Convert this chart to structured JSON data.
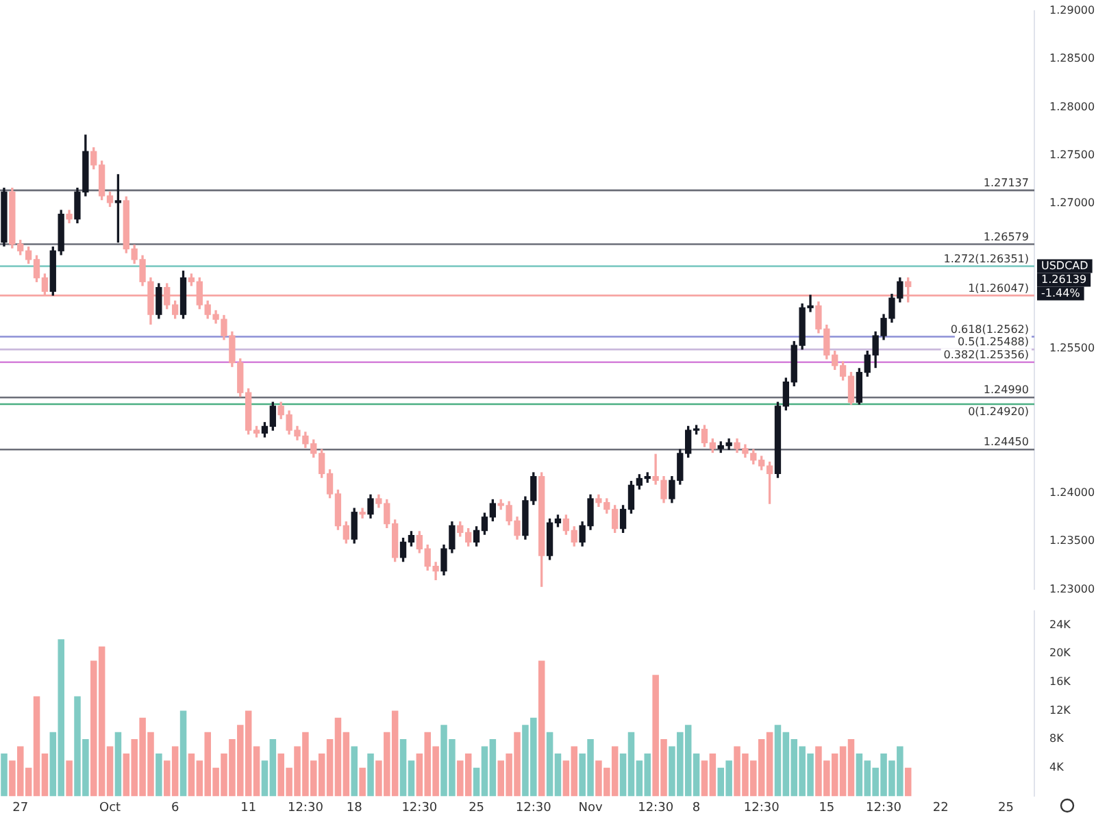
{
  "chart_data": [
    {
      "type": "candlestick",
      "tick_labels": "y",
      "categories": [
        null,
        null,
        null,
        null,
        null,
        null,
        null,
        null,
        null,
        null,
        null,
        null,
        null,
        null,
        null,
        null,
        null,
        null,
        null,
        null,
        null,
        null,
        null,
        null,
        null,
        null,
        null,
        null,
        null,
        null,
        null,
        null,
        null,
        null,
        null,
        null,
        null,
        null,
        null,
        null,
        null,
        null,
        null,
        null,
        null,
        null,
        null,
        null,
        null,
        null,
        null,
        null,
        null,
        null,
        null,
        null,
        null,
        null,
        null,
        null,
        null,
        null,
        null,
        null,
        null,
        null,
        null,
        null,
        null,
        null,
        null,
        null,
        null,
        null,
        null,
        null,
        null,
        null,
        null,
        null,
        null,
        null,
        null,
        null,
        null,
        null,
        null,
        null,
        null,
        null,
        null,
        null,
        null,
        null,
        null,
        null,
        null,
        null,
        null,
        null,
        null,
        null,
        null,
        null,
        null,
        null,
        null,
        null,
        null,
        null,
        null,
        null,
        null,
        null,
        null,
        null,
        null,
        null,
        null,
        null,
        null,
        null,
        null,
        null,
        null,
        null,
        null
      ],
      "ohlc": [
        [
          1.266,
          1.2716,
          1.2656,
          1.2712
        ],
        [
          1.2712,
          1.2716,
          1.2654,
          1.2658
        ],
        [
          1.2658,
          1.2662,
          1.2647,
          1.2651
        ],
        [
          1.2651,
          1.2655,
          1.2638,
          1.2642
        ],
        [
          1.2642,
          1.2646,
          1.2619,
          1.2623
        ],
        [
          1.2623,
          1.2627,
          1.2605,
          1.2609
        ],
        [
          1.2609,
          1.2655,
          1.2605,
          1.2651
        ],
        [
          1.2651,
          1.2693,
          1.2647,
          1.2689
        ],
        [
          1.2689,
          1.2693,
          1.268,
          1.2684
        ],
        [
          1.2684,
          1.2716,
          1.268,
          1.2712
        ],
        [
          1.2712,
          1.2771,
          1.2708,
          1.2754
        ],
        [
          1.2754,
          1.2758,
          1.2736,
          1.274
        ],
        [
          1.274,
          1.2744,
          1.2704,
          1.2708
        ],
        [
          1.2708,
          1.2712,
          1.2697,
          1.2701
        ],
        [
          1.2701,
          1.273,
          1.266,
          1.2703
        ],
        [
          1.2703,
          1.2707,
          1.2649,
          1.2653
        ],
        [
          1.2653,
          1.2657,
          1.2638,
          1.2642
        ],
        [
          1.2642,
          1.2646,
          1.2615,
          1.2619
        ],
        [
          1.2619,
          1.2623,
          1.2575,
          1.2585
        ],
        [
          1.2585,
          1.2617,
          1.2581,
          1.2613
        ],
        [
          1.2613,
          1.2617,
          1.2591,
          1.2595
        ],
        [
          1.2595,
          1.2599,
          1.2581,
          1.2585
        ],
        [
          1.2585,
          1.263,
          1.2581,
          1.2623
        ],
        [
          1.2623,
          1.2627,
          1.2615,
          1.2619
        ],
        [
          1.2619,
          1.2623,
          1.2591,
          1.2595
        ],
        [
          1.2595,
          1.2599,
          1.2581,
          1.2585
        ],
        [
          1.2585,
          1.2589,
          1.2576,
          1.258
        ],
        [
          1.258,
          1.2584,
          1.2559,
          1.2563
        ],
        [
          1.2563,
          1.2567,
          1.2531,
          1.2535
        ],
        [
          1.2535,
          1.2539,
          1.25,
          1.2504
        ],
        [
          1.2504,
          1.2508,
          1.2461,
          1.2465
        ],
        [
          1.2465,
          1.2469,
          1.2458,
          1.2462
        ],
        [
          1.2462,
          1.2473,
          1.2458,
          1.2469
        ],
        [
          1.2469,
          1.2494,
          1.2465,
          1.249
        ],
        [
          1.249,
          1.2494,
          1.2477,
          1.2481
        ],
        [
          1.2481,
          1.2485,
          1.2461,
          1.2465
        ],
        [
          1.2465,
          1.2469,
          1.2455,
          1.2459
        ],
        [
          1.2459,
          1.2463,
          1.2447,
          1.2451
        ],
        [
          1.2451,
          1.2455,
          1.2437,
          1.2441
        ],
        [
          1.2441,
          1.2445,
          1.2416,
          1.242
        ],
        [
          1.242,
          1.2424,
          1.2395,
          1.2399
        ],
        [
          1.2399,
          1.2403,
          1.2362,
          1.2366
        ],
        [
          1.2366,
          1.237,
          1.2348,
          1.2352
        ],
        [
          1.2352,
          1.2384,
          1.2348,
          1.238
        ],
        [
          1.238,
          1.2384,
          1.2374,
          1.2378
        ],
        [
          1.2378,
          1.2398,
          1.2374,
          1.2394
        ],
        [
          1.2394,
          1.2398,
          1.2385,
          1.2389
        ],
        [
          1.2389,
          1.2393,
          1.2364,
          1.2368
        ],
        [
          1.2368,
          1.2372,
          1.2329,
          1.2333
        ],
        [
          1.2333,
          1.2353,
          1.2329,
          1.2349
        ],
        [
          1.2349,
          1.236,
          1.2345,
          1.2356
        ],
        [
          1.2356,
          1.236,
          1.2338,
          1.2342
        ],
        [
          1.2342,
          1.2346,
          1.232,
          1.2324
        ],
        [
          1.2324,
          1.2328,
          1.231,
          1.2319
        ],
        [
          1.2319,
          1.2346,
          1.2315,
          1.2342
        ],
        [
          1.2342,
          1.237,
          1.2338,
          1.2366
        ],
        [
          1.2366,
          1.237,
          1.2355,
          1.2359
        ],
        [
          1.2359,
          1.2363,
          1.2345,
          1.2349
        ],
        [
          1.2349,
          1.2365,
          1.2345,
          1.2361
        ],
        [
          1.2361,
          1.2379,
          1.2357,
          1.2375
        ],
        [
          1.2375,
          1.2393,
          1.2371,
          1.2389
        ],
        [
          1.2389,
          1.2393,
          1.2383,
          1.2387
        ],
        [
          1.2387,
          1.2391,
          1.2367,
          1.2371
        ],
        [
          1.2371,
          1.2375,
          1.2352,
          1.2356
        ],
        [
          1.2356,
          1.2396,
          1.2352,
          1.2392
        ],
        [
          1.2392,
          1.2421,
          1.2388,
          1.2417
        ],
        [
          1.2417,
          1.2421,
          1.2303,
          1.2335
        ],
        [
          1.2335,
          1.2373,
          1.2331,
          1.2369
        ],
        [
          1.2369,
          1.2377,
          1.2365,
          1.2373
        ],
        [
          1.2373,
          1.2377,
          1.2357,
          1.2361
        ],
        [
          1.2361,
          1.2365,
          1.2345,
          1.2349
        ],
        [
          1.2349,
          1.237,
          1.2345,
          1.2366
        ],
        [
          1.2366,
          1.2398,
          1.2362,
          1.2394
        ],
        [
          1.2394,
          1.2398,
          1.2386,
          1.239
        ],
        [
          1.239,
          1.2394,
          1.2379,
          1.2383
        ],
        [
          1.2383,
          1.2387,
          1.2359,
          1.2363
        ],
        [
          1.2363,
          1.2387,
          1.2359,
          1.2383
        ],
        [
          1.2383,
          1.2412,
          1.2379,
          1.2408
        ],
        [
          1.2408,
          1.2419,
          1.2404,
          1.2415
        ],
        [
          1.2415,
          1.2421,
          1.2411,
          1.2417
        ],
        [
          1.2417,
          1.244,
          1.2409,
          1.2413
        ],
        [
          1.2413,
          1.2417,
          1.239,
          1.2394
        ],
        [
          1.2394,
          1.2417,
          1.239,
          1.2413
        ],
        [
          1.2413,
          1.2445,
          1.2409,
          1.2441
        ],
        [
          1.2441,
          1.2469,
          1.2437,
          1.2465
        ],
        [
          1.2465,
          1.247,
          1.2461,
          1.2466
        ],
        [
          1.2466,
          1.247,
          1.2448,
          1.2452
        ],
        [
          1.2452,
          1.2456,
          1.2442,
          1.2446
        ],
        [
          1.2446,
          1.2453,
          1.2442,
          1.2449
        ],
        [
          1.2449,
          1.2456,
          1.2445,
          1.2452
        ],
        [
          1.2452,
          1.2456,
          1.2442,
          1.2446
        ],
        [
          1.2446,
          1.245,
          1.2437,
          1.2441
        ],
        [
          1.2441,
          1.2445,
          1.243,
          1.2434
        ],
        [
          1.2434,
          1.2438,
          1.2424,
          1.2428
        ],
        [
          1.2428,
          1.2432,
          1.2389,
          1.242
        ],
        [
          1.242,
          1.2494,
          1.2416,
          1.249
        ],
        [
          1.249,
          1.2519,
          1.2486,
          1.2515
        ],
        [
          1.2515,
          1.2557,
          1.2511,
          1.2553
        ],
        [
          1.2553,
          1.2596,
          1.2549,
          1.2592
        ],
        [
          1.2592,
          1.2605,
          1.2588,
          1.2594
        ],
        [
          1.2594,
          1.2598,
          1.2566,
          1.257
        ],
        [
          1.257,
          1.2574,
          1.2539,
          1.2543
        ],
        [
          1.2543,
          1.2547,
          1.2528,
          1.2532
        ],
        [
          1.2532,
          1.2536,
          1.2517,
          1.2521
        ],
        [
          1.2521,
          1.2525,
          1.2492,
          1.2494
        ],
        [
          1.2494,
          1.2529,
          1.2492,
          1.2525
        ],
        [
          1.2525,
          1.2547,
          1.2521,
          1.2543
        ],
        [
          1.2543,
          1.2567,
          1.253,
          1.2563
        ],
        [
          1.2563,
          1.2585,
          1.2559,
          1.2581
        ],
        [
          1.2581,
          1.2606,
          1.2577,
          1.2602
        ],
        [
          1.2602,
          1.2623,
          1.2598,
          1.2619
        ],
        [
          1.2619,
          1.2623,
          1.2598,
          1.26139
        ],
        null,
        null,
        null,
        null,
        null,
        null,
        null,
        null,
        null,
        null,
        null,
        null,
        null,
        null,
        null
      ],
      "colors": [
        "#131722",
        "#f7a5a3",
        "#f7a5a3",
        "#f7a5a3",
        "#f7a5a3",
        "#f7a5a3",
        "#131722",
        "#131722",
        "#f7a5a3",
        "#131722",
        "#131722",
        "#f7a5a3",
        "#f7a5a3",
        "#f7a5a3",
        "#131722",
        "#f7a5a3",
        "#f7a5a3",
        "#f7a5a3",
        "#f7a5a3",
        "#131722",
        "#f7a5a3",
        "#f7a5a3",
        "#131722",
        "#f7a5a3",
        "#f7a5a3",
        "#f7a5a3",
        "#f7a5a3",
        "#f7a5a3",
        "#f7a5a3",
        "#f7a5a3",
        "#f7a5a3",
        "#f7a5a3",
        "#131722",
        "#131722",
        "#f7a5a3",
        "#f7a5a3",
        "#f7a5a3",
        "#f7a5a3",
        "#f7a5a3",
        "#f7a5a3",
        "#f7a5a3",
        "#f7a5a3",
        "#f7a5a3",
        "#131722",
        "#f7a5a3",
        "#131722",
        "#f7a5a3",
        "#f7a5a3",
        "#f7a5a3",
        "#131722",
        "#131722",
        "#f7a5a3",
        "#f7a5a3",
        "#f7a5a3",
        "#131722",
        "#131722",
        "#f7a5a3",
        "#f7a5a3",
        "#131722",
        "#131722",
        "#131722",
        "#f7a5a3",
        "#f7a5a3",
        "#f7a5a3",
        "#131722",
        "#131722",
        "#f7a5a3",
        "#131722",
        "#131722",
        "#f7a5a3",
        "#f7a5a3",
        "#131722",
        "#131722",
        "#f7a5a3",
        "#f7a5a3",
        "#f7a5a3",
        "#131722",
        "#131722",
        "#131722",
        "#131722",
        "#f7a5a3",
        "#f7a5a3",
        "#131722",
        "#131722",
        "#131722",
        "#131722",
        "#f7a5a3",
        "#f7a5a3",
        "#131722",
        "#131722",
        "#f7a5a3",
        "#f7a5a3",
        "#f7a5a3",
        "#f7a5a3",
        "#f7a5a3",
        "#131722",
        "#131722",
        "#131722",
        "#131722",
        "#131722",
        "#f7a5a3",
        "#f7a5a3",
        "#f7a5a3",
        "#f7a5a3",
        "#f7a5a3",
        "#131722",
        "#131722",
        "#131722",
        "#131722",
        "#131722",
        "#131722",
        "#f7a5a3",
        "#131722",
        "#131722",
        "#131722",
        "#131722",
        "#131722",
        "#131722",
        "#131722",
        "#131722",
        "#131722",
        "#131722",
        "#131722",
        "#131722",
        "#131722",
        "#131722",
        "#131722"
      ],
      "ylim": [
        1.23,
        1.29
      ],
      "yticks": [
        {
          "value": 1.23,
          "label": "1.23000"
        },
        {
          "value": 1.235,
          "label": "1.23500"
        },
        {
          "value": 1.24,
          "label": "1.24000"
        },
        {
          "value": 1.255,
          "label": "1.25500"
        },
        {
          "value": 1.27,
          "label": "1.27000"
        },
        {
          "value": 1.275,
          "label": "1.27500"
        },
        {
          "value": 1.28,
          "label": "1.28000"
        },
        {
          "value": 1.285,
          "label": "1.28500"
        },
        {
          "value": 1.29,
          "label": "1.29000"
        }
      ],
      "ref_lines": [
        {
          "axis": "y",
          "value": 1.27137,
          "label": "1.27137",
          "color": "#6b6e78"
        },
        {
          "axis": "y",
          "value": 1.26579,
          "label": "1.26579",
          "color": "#6b6e78"
        },
        {
          "axis": "y",
          "value": 1.2499,
          "label": "1.24990",
          "color": "#6b6e78"
        },
        {
          "axis": "y",
          "value": 1.2445,
          "label": "1.24450",
          "color": "#6b6e78"
        },
        {
          "axis": "y",
          "value": 1.26351,
          "label": "1.272(1.26351)",
          "color": "#80cbc4"
        },
        {
          "axis": "y",
          "value": 1.26047,
          "label": "1(1.26047)",
          "color": "#f7a5a3"
        },
        {
          "axis": "y",
          "value": 1.2562,
          "label": "0.618(1.2562)",
          "color": "#8c8fd6"
        },
        {
          "axis": "y",
          "value": 1.25488,
          "label": "0.5(1.25488)",
          "color": "#c9b8dc"
        },
        {
          "axis": "y",
          "value": 1.25356,
          "label": "0.382(1.25356)",
          "color": "#d47fd9"
        },
        {
          "axis": "y",
          "value": 1.2492,
          "label": "0(1.24920)",
          "color": "#4caf83"
        }
      ],
      "annotations": [
        "USDCAD",
        "1.26139",
        "-1.44%"
      ]
    },
    {
      "type": "bar",
      "categories": [
        null,
        null,
        "27",
        null,
        null,
        null,
        null,
        null,
        null,
        null,
        null,
        null,
        null,
        "Oct",
        null,
        null,
        null,
        null,
        null,
        null,
        null,
        "6",
        null,
        null,
        null,
        null,
        null,
        null,
        null,
        null,
        "11",
        null,
        null,
        null,
        null,
        null,
        null,
        "12:30",
        null,
        null,
        null,
        null,
        null,
        "18",
        null,
        null,
        null,
        null,
        null,
        null,
        null,
        "12:30",
        null,
        null,
        null,
        null,
        null,
        null,
        "25",
        null,
        null,
        null,
        null,
        null,
        null,
        "12:30",
        null,
        null,
        null,
        null,
        null,
        null,
        "Nov",
        null,
        null,
        null,
        null,
        null,
        null,
        null,
        "12:30",
        null,
        null,
        null,
        null,
        "8",
        null,
        null,
        null,
        null,
        null,
        null,
        null,
        "12:30",
        null,
        null,
        null,
        null,
        null,
        null,
        null,
        "15",
        null,
        null,
        null,
        null,
        null,
        null,
        "12:30",
        null,
        null,
        null,
        null,
        null,
        null,
        "22",
        null,
        null,
        null,
        null,
        null,
        null,
        null,
        "25",
        null,
        null,
        null
      ],
      "values": [
        6000,
        5000,
        7000,
        4000,
        14000,
        6000,
        9000,
        22000,
        5000,
        14000,
        8000,
        19000,
        21000,
        7000,
        9000,
        6000,
        8000,
        11000,
        9000,
        6000,
        5000,
        7000,
        12000,
        6000,
        5000,
        9000,
        4000,
        6000,
        8000,
        10000,
        12000,
        7000,
        5000,
        8000,
        6000,
        4000,
        7000,
        9000,
        5000,
        6000,
        8000,
        11000,
        9000,
        7000,
        4000,
        6000,
        5000,
        9000,
        12000,
        8000,
        5000,
        6000,
        9000,
        7000,
        10000,
        8000,
        5000,
        6000,
        4000,
        7000,
        8000,
        5000,
        6000,
        9000,
        10000,
        11000,
        19000,
        9000,
        6000,
        5000,
        7000,
        6000,
        8000,
        5000,
        4000,
        7000,
        6000,
        9000,
        5000,
        6000,
        17000,
        8000,
        7000,
        9000,
        10000,
        6000,
        5000,
        6000,
        4000,
        5000,
        7000,
        6000,
        5000,
        8000,
        9000,
        10000,
        9000,
        8000,
        7000,
        6000,
        7000,
        5000,
        6000,
        7000,
        8000,
        6000,
        5000,
        4000,
        6000,
        5000,
        7000,
        4000,
        null,
        null,
        null,
        null,
        null,
        null,
        null,
        null,
        null,
        null,
        null,
        null,
        null,
        null,
        null
      ],
      "colors": [
        "#80cbc4",
        "#f7a09c",
        "#f7a09c",
        "#f7a09c",
        "#f7a09c",
        "#f7a09c",
        "#80cbc4",
        "#80cbc4",
        "#f7a09c",
        "#80cbc4",
        "#80cbc4",
        "#f7a09c",
        "#f7a09c",
        "#f7a09c",
        "#80cbc4",
        "#f7a09c",
        "#f7a09c",
        "#f7a09c",
        "#f7a09c",
        "#80cbc4",
        "#f7a09c",
        "#f7a09c",
        "#80cbc4",
        "#f7a09c",
        "#f7a09c",
        "#f7a09c",
        "#f7a09c",
        "#f7a09c",
        "#f7a09c",
        "#f7a09c",
        "#f7a09c",
        "#f7a09c",
        "#80cbc4",
        "#80cbc4",
        "#f7a09c",
        "#f7a09c",
        "#f7a09c",
        "#f7a09c",
        "#f7a09c",
        "#f7a09c",
        "#f7a09c",
        "#f7a09c",
        "#f7a09c",
        "#80cbc4",
        "#f7a09c",
        "#80cbc4",
        "#f7a09c",
        "#f7a09c",
        "#f7a09c",
        "#80cbc4",
        "#80cbc4",
        "#f7a09c",
        "#f7a09c",
        "#f7a09c",
        "#80cbc4",
        "#80cbc4",
        "#f7a09c",
        "#f7a09c",
        "#80cbc4",
        "#80cbc4",
        "#80cbc4",
        "#f7a09c",
        "#f7a09c",
        "#f7a09c",
        "#80cbc4",
        "#80cbc4",
        "#f7a09c",
        "#80cbc4",
        "#80cbc4",
        "#f7a09c",
        "#f7a09c",
        "#80cbc4",
        "#80cbc4",
        "#f7a09c",
        "#f7a09c",
        "#f7a09c",
        "#80cbc4",
        "#80cbc4",
        "#80cbc4",
        "#80cbc4",
        "#f7a09c",
        "#f7a09c",
        "#80cbc4",
        "#80cbc4",
        "#80cbc4",
        "#80cbc4",
        "#f7a09c",
        "#f7a09c",
        "#80cbc4",
        "#80cbc4",
        "#f7a09c",
        "#f7a09c",
        "#f7a09c",
        "#f7a09c",
        "#f7a09c",
        "#80cbc4",
        "#80cbc4",
        "#80cbc4",
        "#80cbc4",
        "#80cbc4",
        "#f7a09c",
        "#f7a09c",
        "#f7a09c",
        "#f7a09c",
        "#f7a09c",
        "#80cbc4",
        "#80cbc4",
        "#80cbc4",
        "#80cbc4",
        "#80cbc4",
        "#80cbc4",
        "#f7a09c",
        "#80cbc4",
        "#80cbc4",
        "#80cbc4",
        "#80cbc4",
        "#80cbc4",
        "#80cbc4",
        "#80cbc4",
        "#80cbc4",
        "#80cbc4",
        "#80cbc4",
        "#80cbc4",
        "#80cbc4",
        "#80cbc4",
        "#80cbc4",
        "#80cbc4"
      ],
      "ylim": [
        0,
        26000
      ],
      "yticks": [
        {
          "value": 4000,
          "label": "4K"
        },
        {
          "value": 8000,
          "label": "8K"
        },
        {
          "value": 12000,
          "label": "12K"
        },
        {
          "value": 16000,
          "label": "16K"
        },
        {
          "value": 20000,
          "label": "20K"
        },
        {
          "value": 24000,
          "label": "24K"
        }
      ]
    }
  ]
}
